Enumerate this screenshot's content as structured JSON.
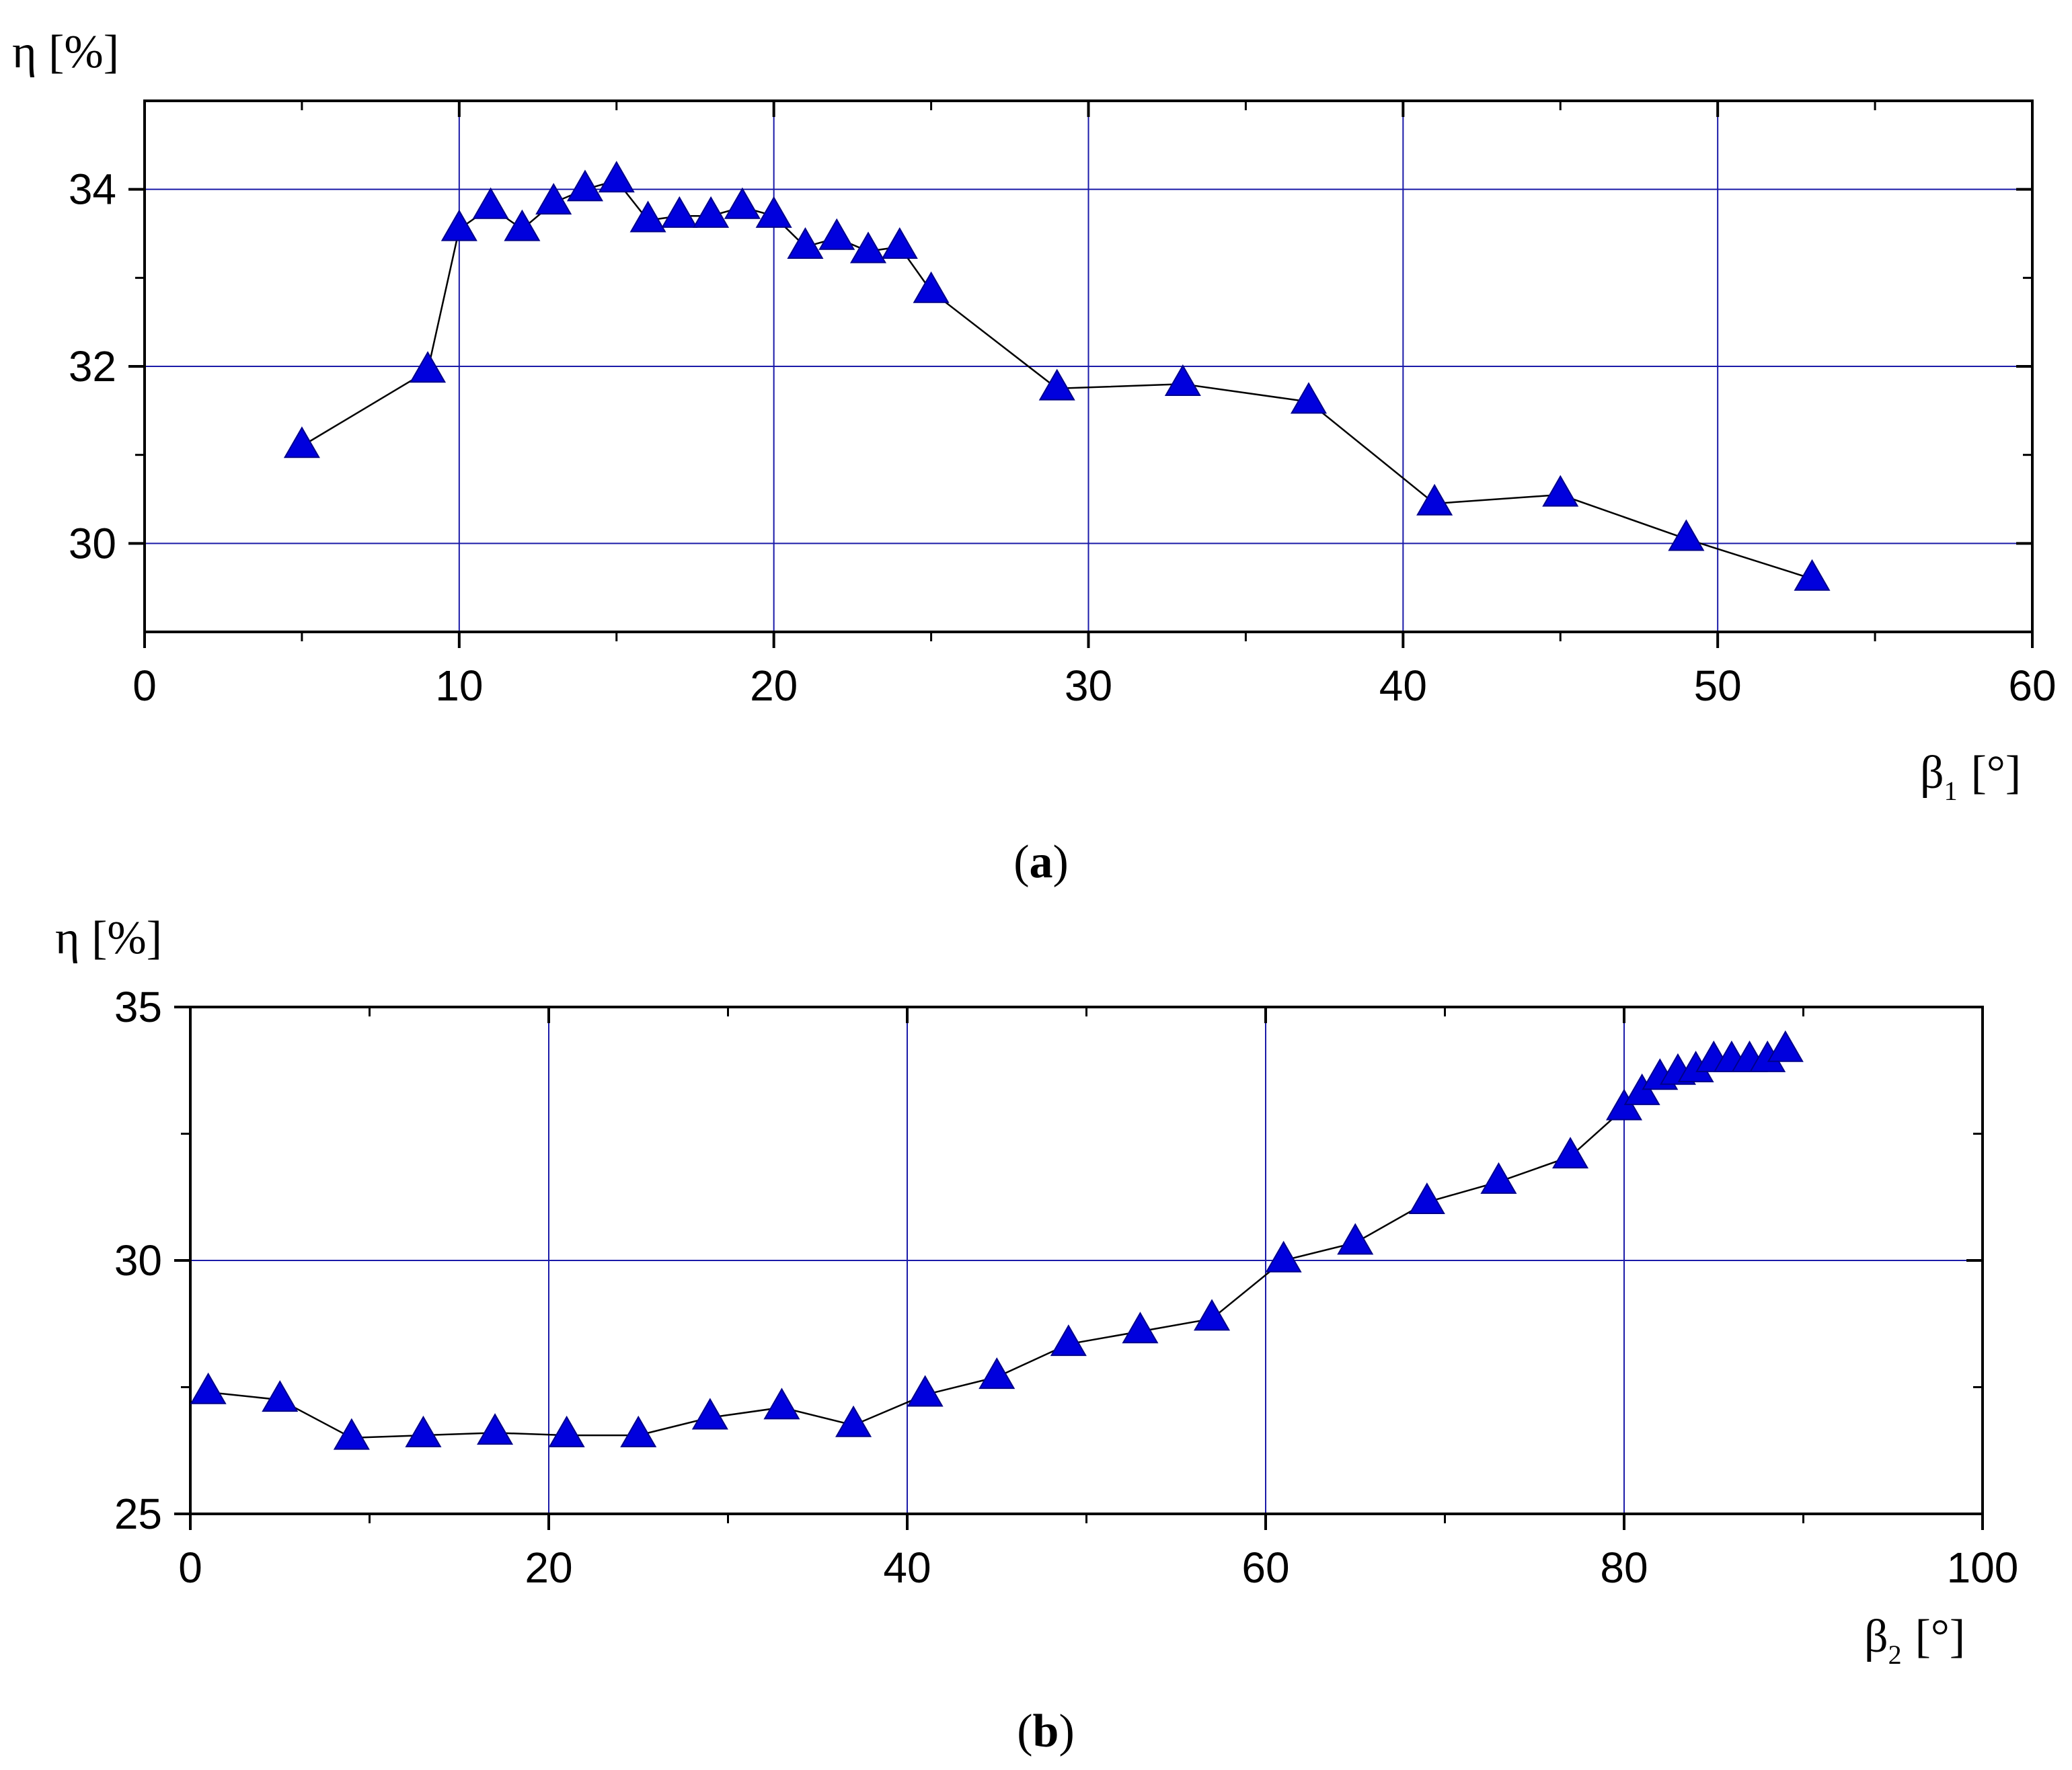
{
  "chart_data": [
    {
      "type": "line",
      "panel_label": "a",
      "xlabel": "β",
      "xlabel_sub": "1",
      "xlabel_unit": "[°]",
      "ylabel": "η [%]",
      "xlim": [
        0,
        60
      ],
      "ylim": [
        29,
        35
      ],
      "xticks": [
        "0",
        "10",
        "20",
        "30",
        "40",
        "50",
        "60"
      ],
      "yticks": [
        "30",
        "32",
        "34"
      ],
      "marker": "triangle-up",
      "marker_color": "#0000dd",
      "line_color": "#000000",
      "grid_color": "#1a1aa8",
      "grid": true,
      "series": [
        {
          "x": [
            5,
            9,
            10,
            11,
            12,
            13,
            14,
            15,
            16,
            17,
            18,
            19,
            20,
            21,
            22,
            23,
            24,
            25,
            29,
            33,
            37,
            41,
            45,
            49,
            53
          ],
          "y": [
            31.1,
            31.95,
            33.55,
            33.8,
            33.55,
            33.85,
            34.0,
            34.1,
            33.65,
            33.7,
            33.7,
            33.8,
            33.7,
            33.35,
            33.45,
            33.3,
            33.35,
            32.85,
            31.75,
            31.8,
            31.6,
            30.45,
            30.55,
            30.05,
            29.6
          ]
        }
      ]
    },
    {
      "type": "line",
      "panel_label": "b",
      "xlabel": "β",
      "xlabel_sub": "2",
      "xlabel_unit": "[°]",
      "ylabel": "η [%]",
      "xlim": [
        0,
        100
      ],
      "ylim": [
        25,
        35
      ],
      "xticks": [
        "0",
        "20",
        "40",
        "60",
        "80",
        "100"
      ],
      "yticks": [
        "25",
        "30",
        "35"
      ],
      "marker": "triangle-up",
      "marker_color": "#0000dd",
      "line_color": "#000000",
      "grid_color": "#1a1aa8",
      "grid": true,
      "series": [
        {
          "x": [
            1,
            5,
            9,
            13,
            17,
            21,
            25,
            29,
            33,
            37,
            41,
            45,
            49,
            53,
            57,
            61,
            65,
            69,
            73,
            77,
            80,
            81,
            82,
            83,
            84,
            85,
            86,
            87,
            88,
            89
          ],
          "y": [
            27.4,
            27.25,
            26.5,
            26.55,
            26.6,
            26.55,
            26.55,
            26.9,
            27.1,
            26.75,
            27.35,
            27.7,
            28.35,
            28.6,
            28.85,
            30.0,
            30.35,
            31.15,
            31.55,
            32.05,
            33.0,
            33.3,
            33.6,
            33.7,
            33.75,
            33.95,
            33.95,
            33.95,
            33.95,
            34.15
          ]
        }
      ]
    }
  ]
}
